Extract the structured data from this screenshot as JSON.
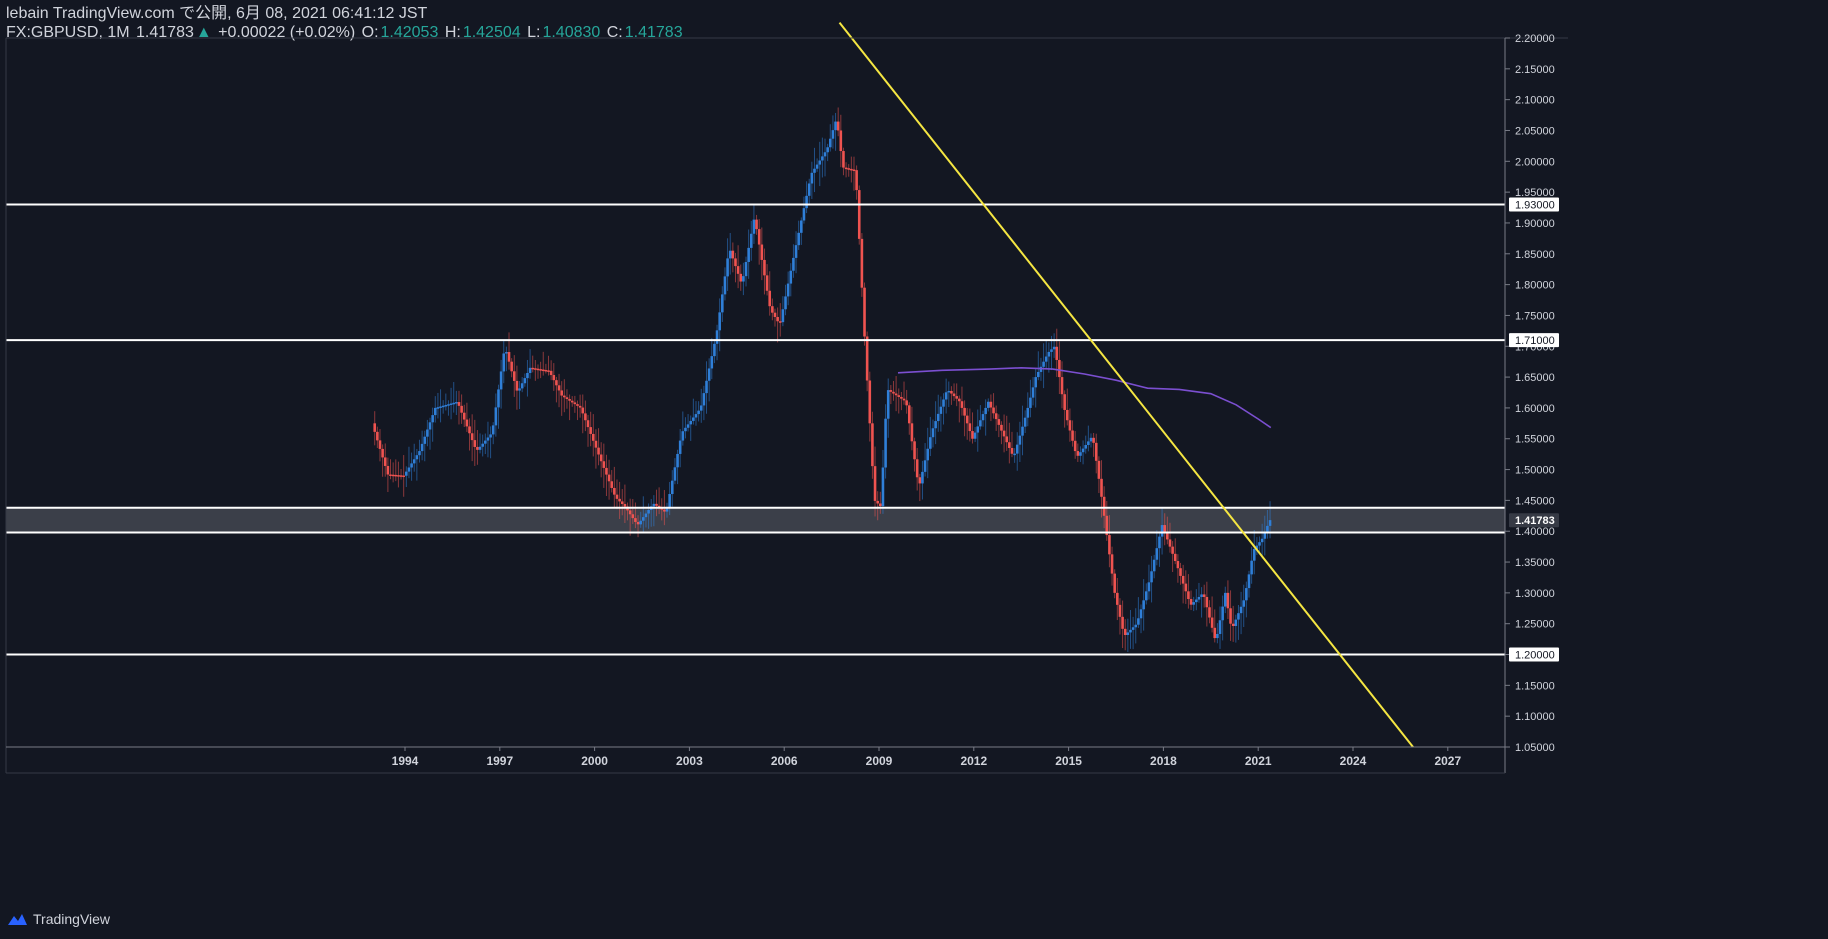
{
  "header": {
    "publisher_line": "lebain TradingView.com で公開, 6月 08, 2021 06:41:12 JST",
    "symbol": "FX:GBPUSD, 1M",
    "last": "1.41783",
    "change_arrow": "▲",
    "change": "+0.00022 (+0.02%)",
    "o_label": "O:",
    "o_value": "1.42053",
    "h_label": "H:",
    "h_value": "1.42504",
    "l_label": "L:",
    "l_value": "1.40830",
    "c_label": "C:",
    "c_value": "1.41783"
  },
  "footer": {
    "brand": "TradingView"
  },
  "colors": {
    "background": "#131722",
    "up": "#2f7fd8",
    "down": "#ef5350",
    "trendline": "#f5e642",
    "ma": "#7b4fd0",
    "hline": "#ffffff",
    "axis_text": "#d1d4dc",
    "zone": "#4a4d57"
  },
  "chart_data": {
    "type": "candlestick",
    "symbol": "FX:GBPUSD",
    "interval": "1M",
    "x_tick_labels": [
      "1994",
      "1997",
      "2000",
      "2003",
      "2006",
      "2009",
      "2012",
      "2015",
      "2018",
      "2021",
      "2024",
      "2027"
    ],
    "y_tick_labels": [
      "2.20000",
      "2.15000",
      "2.10000",
      "2.05000",
      "2.00000",
      "1.95000",
      "1.90000",
      "1.85000",
      "1.80000",
      "1.75000",
      "1.70000",
      "1.65000",
      "1.60000",
      "1.55000",
      "1.50000",
      "1.45000",
      "1.40000",
      "1.35000",
      "1.30000",
      "1.25000",
      "1.20000",
      "1.15000",
      "1.10000",
      "1.05000"
    ],
    "ylim": [
      1.05,
      2.2
    ],
    "xlim": [
      1992.0,
      2029.5
    ],
    "horizontal_levels": [
      {
        "price": 1.93,
        "label": "1.93000"
      },
      {
        "price": 1.71,
        "label": "1.71000"
      },
      {
        "price": 1.2,
        "label": "1.20000"
      }
    ],
    "zone": {
      "top": 1.438,
      "bottom": 1.398
    },
    "last_price_label": "1.41783",
    "trendline": {
      "start": {
        "x": 2007.75,
        "y": 2.225
      },
      "end": {
        "x": 2025.9,
        "y": 1.05
      }
    },
    "moving_average": {
      "x": [
        2009.6,
        2011.0,
        2012.5,
        2013.5,
        2014.5,
        2015.5,
        2016.5,
        2017.5,
        2018.5,
        2019.5,
        2020.3,
        2021.0,
        2021.4
      ],
      "y": [
        1.657,
        1.661,
        1.663,
        1.665,
        1.663,
        1.655,
        1.645,
        1.632,
        1.63,
        1.623,
        1.605,
        1.582,
        1.568
      ]
    },
    "price_path": {
      "x": [
        1993.0,
        1993.5,
        1994.0,
        1994.5,
        1995.0,
        1995.7,
        1996.3,
        1996.8,
        1997.2,
        1997.6,
        1998.0,
        1998.6,
        1999.0,
        1999.6,
        2000.2,
        2000.7,
        2001.0,
        2001.4,
        2001.9,
        2002.3,
        2002.8,
        2003.4,
        2003.9,
        2004.3,
        2004.7,
        2005.1,
        2005.6,
        2005.9,
        2006.4,
        2006.9,
        2007.4,
        2007.7,
        2007.9,
        2008.3,
        2008.6,
        2008.9,
        2009.1,
        2009.3,
        2009.6,
        2009.9,
        2010.3,
        2010.7,
        2011.2,
        2011.6,
        2012.0,
        2012.5,
        2012.9,
        2013.3,
        2013.7,
        2014.0,
        2014.4,
        2014.6,
        2014.9,
        2015.3,
        2015.8,
        2016.1,
        2016.5,
        2016.8,
        2017.2,
        2017.6,
        2018.0,
        2018.5,
        2018.9,
        2019.3,
        2019.7,
        2020.0,
        2020.2,
        2020.6,
        2020.9,
        2021.2,
        2021.4
      ],
      "y": [
        1.575,
        1.492,
        1.49,
        1.53,
        1.6,
        1.61,
        1.53,
        1.56,
        1.7,
        1.625,
        1.665,
        1.66,
        1.62,
        1.6,
        1.52,
        1.455,
        1.44,
        1.41,
        1.445,
        1.43,
        1.56,
        1.6,
        1.72,
        1.86,
        1.8,
        1.91,
        1.76,
        1.735,
        1.86,
        1.98,
        2.02,
        2.07,
        1.99,
        1.985,
        1.7,
        1.45,
        1.44,
        1.63,
        1.62,
        1.61,
        1.47,
        1.56,
        1.63,
        1.61,
        1.55,
        1.61,
        1.565,
        1.52,
        1.59,
        1.65,
        1.69,
        1.7,
        1.6,
        1.52,
        1.555,
        1.45,
        1.3,
        1.23,
        1.25,
        1.32,
        1.41,
        1.34,
        1.28,
        1.3,
        1.22,
        1.3,
        1.24,
        1.29,
        1.37,
        1.39,
        1.418
      ]
    }
  }
}
